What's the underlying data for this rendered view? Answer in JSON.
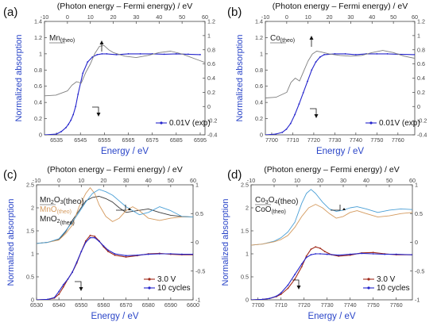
{
  "colors": {
    "exp": "#2525cc",
    "theo_gray": "#7f7f7f",
    "red": "#a02a1a",
    "blue_theo": "#4a9fd6",
    "dark_theo": "#3a3a3a",
    "orange": "#d49a5e",
    "label_blue": "#2a45c8"
  },
  "chart_data": [
    {
      "panel": "(a)",
      "type": "line",
      "title": "(Photon energy – Fermi energy) / eV",
      "xlabel": "Energy / eV",
      "ylabel": "Normalized absorption",
      "xlim": [
        6530,
        6597
      ],
      "xticks": [
        "6535",
        "6545",
        "6555",
        "6565",
        "6575",
        "6585",
        "6595"
      ],
      "top_xlim": [
        -10,
        60
      ],
      "top_xticks": [
        "-10",
        "0",
        "10",
        "20",
        "30",
        "40",
        "50",
        "60"
      ],
      "ylim_left": [
        0,
        1.4
      ],
      "yticks_left": [
        "0",
        "0.2",
        "0.4",
        "0.6",
        "0.8",
        "1",
        "1.2",
        "1.4"
      ],
      "ylim_right": [
        -0.4,
        1.2
      ],
      "yticks_right": [
        "-0.4",
        "-0.2",
        "0",
        "0.2",
        "0.4",
        "0.6",
        "0.8",
        "1",
        "1.2"
      ],
      "theo_labels": [
        {
          "main": "Mn",
          "sub": "(theo)",
          "color": "#222222"
        }
      ],
      "series": [
        {
          "name": "0.01V (exp)",
          "axis": "bottom-left",
          "style": "exp",
          "x": [
            6530,
            6535,
            6537,
            6539,
            6540,
            6541,
            6542,
            6543,
            6544,
            6546,
            6548,
            6550,
            6552,
            6554,
            6556,
            6560,
            6565,
            6570,
            6575,
            6580,
            6585,
            6590,
            6595
          ],
          "y": [
            0,
            0.01,
            0.04,
            0.09,
            0.13,
            0.18,
            0.25,
            0.35,
            0.5,
            0.76,
            0.9,
            0.96,
            0.99,
            1.0,
            1.0,
            0.99,
            1.0,
            1.0,
            1.0,
            0.995,
            1.0,
            0.995,
            0.99
          ]
        },
        {
          "name": "Mn (theo)",
          "axis": "top-right",
          "style": "gray",
          "x": [
            -10,
            -5,
            0,
            2,
            4,
            6,
            8,
            10,
            12,
            14,
            16,
            18,
            20,
            25,
            30,
            35,
            40,
            45,
            50,
            55,
            60
          ],
          "y": [
            0.15,
            0.16,
            0.22,
            0.3,
            0.35,
            0.33,
            0.48,
            0.6,
            0.75,
            0.85,
            0.86,
            0.8,
            0.76,
            0.71,
            0.69,
            0.72,
            0.76,
            0.78,
            0.74,
            0.68,
            0.62
          ]
        }
      ],
      "arrows": [
        {
          "dir": "up"
        },
        {
          "dir": "right"
        }
      ]
    },
    {
      "panel": "(b)",
      "type": "line",
      "title": "(Photon energy – Fermi energy) / eV",
      "xlabel": "Energy / eV",
      "ylabel": "Normalized absorption",
      "xlim": [
        7697,
        7768
      ],
      "xticks": [
        "7700",
        "7710",
        "7720",
        "7730",
        "7740",
        "7750",
        "7760"
      ],
      "top_xlim": [
        -10,
        60
      ],
      "top_xticks": [
        "-10",
        "0",
        "10",
        "20",
        "30",
        "40",
        "50",
        "60"
      ],
      "ylim_left": [
        0,
        1.4
      ],
      "yticks_left": [
        "0",
        "0.2",
        "0.4",
        "0.6",
        "0.8",
        "1",
        "1.2",
        "1.4"
      ],
      "ylim_right": [
        -0.4,
        1.2
      ],
      "yticks_right": [
        "-0.4",
        "-0.2",
        "0",
        "0.2",
        "0.4",
        "0.6",
        "0.8",
        "1",
        "1.2"
      ],
      "theo_labels": [
        {
          "main": "Co",
          "sub": "(theo)",
          "color": "#222222"
        }
      ],
      "series": [
        {
          "name": "0.01V (exp)",
          "axis": "bottom-left",
          "style": "exp",
          "x": [
            7697,
            7702,
            7705,
            7707,
            7709,
            7711,
            7713,
            7715,
            7717,
            7719,
            7721,
            7723,
            7725,
            7730,
            7735,
            7740,
            7745,
            7750,
            7755,
            7760,
            7768
          ],
          "y": [
            0,
            0.01,
            0.03,
            0.07,
            0.14,
            0.25,
            0.38,
            0.52,
            0.66,
            0.8,
            0.9,
            0.96,
            0.99,
            1.0,
            1.0,
            0.99,
            1.0,
            1.0,
            1.0,
            0.995,
            0.99
          ]
        },
        {
          "name": "Co (theo)",
          "axis": "top-right",
          "style": "gray",
          "x": [
            -10,
            -5,
            0,
            2,
            4,
            6,
            8,
            10,
            12,
            14,
            16,
            20,
            25,
            30,
            35,
            40,
            45,
            50,
            55,
            60
          ],
          "y": [
            0.12,
            0.13,
            0.2,
            0.34,
            0.4,
            0.36,
            0.5,
            0.64,
            0.74,
            0.78,
            0.77,
            0.74,
            0.72,
            0.71,
            0.72,
            0.76,
            0.79,
            0.76,
            0.71,
            0.68
          ]
        }
      ],
      "arrows": [
        {
          "dir": "up"
        },
        {
          "dir": "right"
        }
      ]
    },
    {
      "panel": "(c)",
      "type": "line",
      "title": "(Photon energy – Fermi energy) / eV",
      "xlabel": "Energy / eV",
      "ylabel": "Normalized absorption",
      "xlim": [
        6530,
        6600
      ],
      "xticks": [
        "6530",
        "6540",
        "6550",
        "6560",
        "6570",
        "6580",
        "6590",
        "6600"
      ],
      "top_xlim": [
        -10,
        60
      ],
      "top_xticks": [
        "-10",
        "0",
        "10",
        "20",
        "30",
        "40",
        "50",
        "60"
      ],
      "ylim_left": [
        0,
        2.5
      ],
      "yticks_left": [
        "0",
        "0.5",
        "1",
        "1.5",
        "2",
        "2.5"
      ],
      "ylim_right": [
        -1.0,
        1.0
      ],
      "yticks_right": [
        "-1",
        "-0.5",
        "0",
        "0.5",
        "1"
      ],
      "theo_labels": [
        {
          "main": "Mn",
          "s1": "2",
          "mid": "O",
          "s2": "3",
          "tail": "(theo)",
          "color": "#222222"
        },
        {
          "main": "MnO",
          "sub": "(theo)",
          "color": "#d49a5e"
        },
        {
          "main": "MnO",
          "s1": "2",
          "tail": "(theo)",
          "color": "#222222"
        }
      ],
      "series": [
        {
          "name": "3.0 V",
          "axis": "bottom-left",
          "style": "red",
          "x": [
            6530,
            6535,
            6538,
            6540,
            6542,
            6544,
            6546,
            6548,
            6550,
            6552,
            6554,
            6556,
            6558,
            6560,
            6562,
            6565,
            6570,
            6575,
            6580,
            6585,
            6590,
            6595,
            6600
          ],
          "y": [
            0,
            0.01,
            0.04,
            0.12,
            0.28,
            0.45,
            0.6,
            0.8,
            1.05,
            1.28,
            1.4,
            1.38,
            1.28,
            1.15,
            1.05,
            0.97,
            0.93,
            0.96,
            1.0,
            1.01,
            0.99,
            0.98,
            0.98
          ]
        },
        {
          "name": "10 cycles",
          "axis": "bottom-left",
          "style": "exp",
          "x": [
            6530,
            6535,
            6538,
            6540,
            6542,
            6544,
            6546,
            6548,
            6550,
            6552,
            6554,
            6556,
            6558,
            6560,
            6562,
            6565,
            6570,
            6575,
            6580,
            6585,
            6590,
            6595,
            6600
          ],
          "y": [
            0,
            0.01,
            0.05,
            0.18,
            0.33,
            0.45,
            0.6,
            0.82,
            1.05,
            1.25,
            1.35,
            1.35,
            1.27,
            1.17,
            1.08,
            1.0,
            0.96,
            0.97,
            0.99,
            1.0,
            1.0,
            0.99,
            0.99
          ]
        },
        {
          "name": "Mn2O3 (theo)",
          "axis": "top-right",
          "style": "dark",
          "x": [
            -10,
            -5,
            0,
            3,
            6,
            9,
            12,
            15,
            18,
            21,
            24,
            27,
            30,
            35,
            40,
            45,
            50,
            55,
            60
          ],
          "y": [
            -0.02,
            0.0,
            0.05,
            0.18,
            0.38,
            0.55,
            0.72,
            0.78,
            0.8,
            0.76,
            0.7,
            0.6,
            0.52,
            0.55,
            0.58,
            0.52,
            0.47,
            0.45,
            0.44
          ]
        },
        {
          "name": "MnO (theo)",
          "axis": "top-right",
          "style": "orange",
          "x": [
            -10,
            -5,
            0,
            3,
            6,
            9,
            12,
            14,
            16,
            18,
            21,
            24,
            27,
            30,
            33,
            36,
            40,
            45,
            50,
            55,
            60
          ],
          "y": [
            -0.02,
            0.0,
            0.04,
            0.15,
            0.3,
            0.62,
            0.85,
            0.95,
            0.85,
            0.65,
            0.45,
            0.36,
            0.42,
            0.55,
            0.62,
            0.55,
            0.42,
            0.38,
            0.42,
            0.44,
            0.44
          ]
        },
        {
          "name": "MnO2 (theo)",
          "axis": "top-right",
          "style": "blue_theo",
          "x": [
            -10,
            -5,
            0,
            3,
            6,
            9,
            12,
            15,
            18,
            21,
            24,
            27,
            30,
            33,
            36,
            40,
            45,
            50,
            55,
            60
          ],
          "y": [
            -0.02,
            0.0,
            0.06,
            0.2,
            0.35,
            0.52,
            0.7,
            0.85,
            0.92,
            0.88,
            0.82,
            0.72,
            0.62,
            0.55,
            0.48,
            0.52,
            0.62,
            0.55,
            0.45,
            0.44
          ]
        }
      ],
      "arrows": [
        {
          "dir": "right"
        },
        {
          "dir": "right"
        }
      ]
    },
    {
      "panel": "(d)",
      "type": "line",
      "title": "(Photon energy – Fermi energy) / eV",
      "xlabel": "Energy / eV",
      "ylabel": "Normalized absorption",
      "xlim": [
        7697,
        7767
      ],
      "xticks": [
        "7700",
        "7710",
        "7720",
        "7730",
        "7740",
        "7750",
        "7760"
      ],
      "top_xlim": [
        -10,
        60
      ],
      "top_xticks": [
        "-10",
        "0",
        "10",
        "20",
        "30",
        "40",
        "50",
        "60"
      ],
      "ylim_left": [
        0,
        2.5
      ],
      "yticks_left": [
        "0",
        "0.5",
        "1",
        "1.5",
        "2",
        "2.5"
      ],
      "ylim_right": [
        -1.0,
        1.0
      ],
      "yticks_right": [
        "-1",
        "-0.5",
        "0",
        "0.5",
        "1"
      ],
      "theo_labels": [
        {
          "main": "Co",
          "s1": "3",
          "mid": "O",
          "s2": "4",
          "tail": "(theo)",
          "color": "#222222"
        },
        {
          "main": "CoO",
          "sub": "(theo)",
          "color": "#222222"
        }
      ],
      "series": [
        {
          "name": "3.0 V",
          "axis": "bottom-left",
          "style": "red",
          "x": [
            7697,
            7702,
            7705,
            7708,
            7710,
            7713,
            7716,
            7719,
            7721,
            7723,
            7725,
            7727,
            7729,
            7732,
            7735,
            7740,
            7745,
            7750,
            7755,
            7760,
            7767
          ],
          "y": [
            0,
            0.01,
            0.03,
            0.07,
            0.12,
            0.25,
            0.45,
            0.72,
            0.95,
            1.1,
            1.15,
            1.12,
            1.05,
            0.98,
            0.95,
            0.97,
            1.02,
            1.03,
            1.0,
            0.98,
            0.98
          ]
        },
        {
          "name": "10 cycles",
          "axis": "bottom-left",
          "style": "exp",
          "x": [
            7697,
            7702,
            7705,
            7708,
            7710,
            7713,
            7716,
            7719,
            7721,
            7723,
            7725,
            7727,
            7730,
            7735,
            7740,
            7745,
            7750,
            7755,
            7760,
            7767
          ],
          "y": [
            0,
            0.01,
            0.03,
            0.08,
            0.15,
            0.32,
            0.55,
            0.78,
            0.92,
            0.98,
            1.0,
            1.0,
            0.99,
            0.97,
            0.99,
            1.01,
            1.0,
            0.99,
            0.99,
            0.98
          ]
        },
        {
          "name": "Co3O4 (theo)",
          "axis": "top-right",
          "style": "blue_theo",
          "x": [
            -10,
            -5,
            0,
            3,
            6,
            9,
            12,
            14,
            16,
            18,
            21,
            24,
            27,
            30,
            33,
            36,
            40,
            45,
            50,
            55,
            60
          ],
          "y": [
            -0.05,
            -0.03,
            0.02,
            0.08,
            0.18,
            0.35,
            0.68,
            0.85,
            0.92,
            0.85,
            0.7,
            0.58,
            0.54,
            0.56,
            0.6,
            0.62,
            0.58,
            0.52,
            0.56,
            0.58,
            0.57
          ]
        },
        {
          "name": "CoO (theo)",
          "axis": "top-right",
          "style": "orange",
          "x": [
            -10,
            -5,
            0,
            3,
            6,
            9,
            12,
            15,
            18,
            21,
            24,
            27,
            30,
            33,
            36,
            40,
            45,
            50,
            55,
            60
          ],
          "y": [
            -0.05,
            -0.03,
            0.01,
            0.05,
            0.12,
            0.26,
            0.45,
            0.6,
            0.66,
            0.6,
            0.5,
            0.42,
            0.45,
            0.52,
            0.55,
            0.5,
            0.44,
            0.46,
            0.5,
            0.52
          ]
        }
      ],
      "arrows": [
        {
          "dir": "right"
        },
        {
          "dir": "right"
        }
      ]
    }
  ]
}
